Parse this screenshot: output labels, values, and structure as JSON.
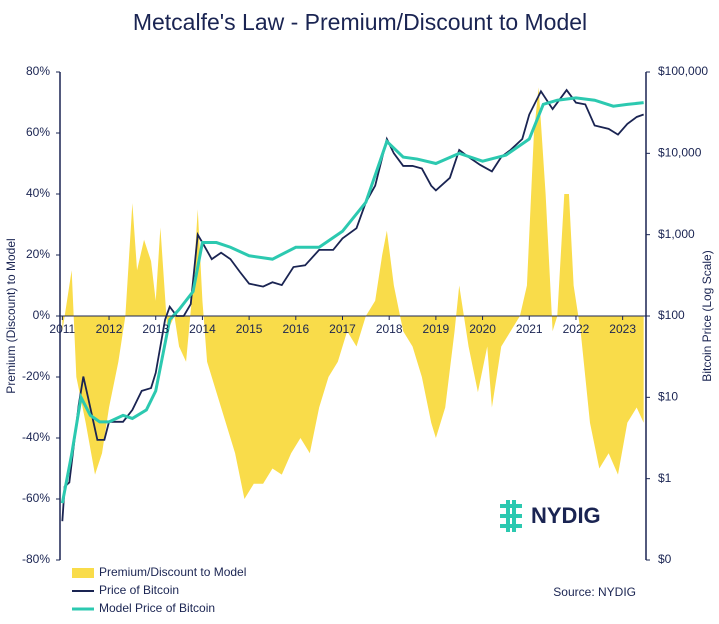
{
  "chart_data": {
    "type": "combo",
    "title": "Metcalfe's Law - Premium/Discount to Model",
    "y_label": "Premium (Discount) to Model",
    "y2_label": "Bitcoin Price (Log Scale)",
    "source": "Source: NYDIG",
    "logo": "NYDIG",
    "xlim": [
      2010.95,
      2023.5
    ],
    "xticks": [
      2011,
      2012,
      2013,
      2014,
      2015,
      2016,
      2017,
      2018,
      2019,
      2020,
      2021,
      2022,
      2023
    ],
    "ylim": [
      -80,
      80
    ],
    "yticks": [
      {
        "value": -80,
        "label": "-80%"
      },
      {
        "value": -60,
        "label": "-60%"
      },
      {
        "value": -40,
        "label": "-40%"
      },
      {
        "value": -20,
        "label": "-20%"
      },
      {
        "value": 0,
        "label": "0%"
      },
      {
        "value": 20,
        "label": "20%"
      },
      {
        "value": 40,
        "label": "40%"
      },
      {
        "value": 60,
        "label": "60%"
      },
      {
        "value": 80,
        "label": "80%"
      }
    ],
    "y2lim": [
      0.1,
      100000
    ],
    "y2log": true,
    "y2ticks": [
      {
        "value": 0.1,
        "label": "$0"
      },
      {
        "value": 1,
        "label": "$1"
      },
      {
        "value": 10,
        "label": "$10"
      },
      {
        "value": 100,
        "label": "$100"
      },
      {
        "value": 1000,
        "label": "$1,000"
      },
      {
        "value": 10000,
        "label": "$10,000"
      },
      {
        "value": 100000,
        "label": "$100,000"
      }
    ],
    "series": [
      {
        "name": "Premium/Discount to Model",
        "kind": "area",
        "color": "#f9dc4a",
        "x": [
          2011.0,
          2011.1,
          2011.2,
          2011.3,
          2011.5,
          2011.7,
          2011.85,
          2012.0,
          2012.2,
          2012.35,
          2012.5,
          2012.6,
          2012.75,
          2012.9,
          2013.0,
          2013.1,
          2013.25,
          2013.4,
          2013.5,
          2013.65,
          2013.8,
          2013.9,
          2014.0,
          2014.1,
          2014.3,
          2014.5,
          2014.7,
          2014.9,
          2015.1,
          2015.3,
          2015.5,
          2015.7,
          2015.9,
          2016.1,
          2016.3,
          2016.5,
          2016.7,
          2016.9,
          2017.1,
          2017.3,
          2017.5,
          2017.7,
          2017.85,
          2017.95,
          2018.1,
          2018.3,
          2018.5,
          2018.7,
          2018.9,
          2019.0,
          2019.2,
          2019.4,
          2019.5,
          2019.7,
          2019.9,
          2020.1,
          2020.2,
          2020.4,
          2020.6,
          2020.8,
          2020.95,
          2021.1,
          2021.2,
          2021.35,
          2021.5,
          2021.6,
          2021.75,
          2021.85,
          2021.95,
          2022.1,
          2022.3,
          2022.5,
          2022.7,
          2022.9,
          2023.1,
          2023.3,
          2023.45
        ],
        "values": [
          -5,
          5,
          15,
          -20,
          -35,
          -52,
          -45,
          -30,
          -15,
          0,
          37,
          15,
          25,
          18,
          5,
          29,
          -5,
          0,
          -10,
          -15,
          10,
          35,
          5,
          -15,
          -25,
          -35,
          -45,
          -60,
          -55,
          -55,
          -50,
          -52,
          -45,
          -40,
          -45,
          -30,
          -20,
          -15,
          -5,
          -10,
          0,
          5,
          20,
          28,
          10,
          -5,
          -10,
          -20,
          -35,
          -40,
          -30,
          -5,
          10,
          -10,
          -25,
          -10,
          -30,
          -10,
          -5,
          0,
          10,
          60,
          75,
          40,
          -5,
          0,
          40,
          40,
          10,
          -5,
          -35,
          -50,
          -45,
          -52,
          -35,
          -30,
          -35
        ]
      },
      {
        "name": "Price of Bitcoin",
        "kind": "line",
        "axis": "y2",
        "color": "#1a2452",
        "x": [
          2011.0,
          2011.05,
          2011.15,
          2011.35,
          2011.45,
          2011.55,
          2011.75,
          2011.9,
          2012.0,
          2012.3,
          2012.5,
          2012.7,
          2012.9,
          2013.0,
          2013.2,
          2013.3,
          2013.45,
          2013.6,
          2013.75,
          2013.9,
          2014.0,
          2014.2,
          2014.4,
          2014.6,
          2014.8,
          2015.0,
          2015.3,
          2015.5,
          2015.7,
          2015.95,
          2016.2,
          2016.5,
          2016.8,
          2017.0,
          2017.3,
          2017.5,
          2017.7,
          2017.95,
          2018.1,
          2018.3,
          2018.5,
          2018.7,
          2018.9,
          2019.0,
          2019.3,
          2019.5,
          2019.7,
          2019.95,
          2020.2,
          2020.4,
          2020.6,
          2020.85,
          2021.0,
          2021.25,
          2021.5,
          2021.8,
          2022.0,
          2022.2,
          2022.4,
          2022.7,
          2022.9,
          2023.1,
          2023.3,
          2023.45
        ],
        "values": [
          0.3,
          0.8,
          0.9,
          8,
          18,
          10,
          3,
          3,
          5,
          5,
          7,
          12,
          13,
          20,
          90,
          130,
          100,
          100,
          140,
          1000,
          800,
          500,
          600,
          500,
          350,
          250,
          230,
          260,
          240,
          400,
          420,
          650,
          650,
          900,
          1200,
          2500,
          4000,
          15000,
          10000,
          7000,
          7000,
          6500,
          4000,
          3500,
          5000,
          11000,
          9000,
          7200,
          6000,
          9000,
          11000,
          15000,
          30000,
          58000,
          35000,
          60000,
          42000,
          40000,
          22000,
          20000,
          17000,
          23000,
          28000,
          30000
        ]
      },
      {
        "name": "Model Price of Bitcoin",
        "kind": "line",
        "axis": "y2",
        "color": "#2cc9b0",
        "x": [
          2011.0,
          2011.2,
          2011.4,
          2011.6,
          2011.8,
          2012.0,
          2012.3,
          2012.5,
          2012.8,
          2013.0,
          2013.3,
          2013.5,
          2013.8,
          2014.0,
          2014.3,
          2014.6,
          2015.0,
          2015.5,
          2016.0,
          2016.5,
          2017.0,
          2017.5,
          2017.95,
          2018.3,
          2018.6,
          2019.0,
          2019.5,
          2020.0,
          2020.5,
          2021.0,
          2021.3,
          2021.6,
          2022.0,
          2022.4,
          2022.8,
          2023.1,
          2023.45
        ],
        "values": [
          0.5,
          2,
          10,
          6,
          5,
          5,
          6,
          5.5,
          7,
          12,
          90,
          120,
          200,
          800,
          800,
          700,
          550,
          500,
          700,
          700,
          1100,
          2500,
          14000,
          9000,
          8500,
          7500,
          10000,
          8000,
          9500,
          15000,
          40000,
          45000,
          48000,
          45000,
          38000,
          40000,
          42000
        ]
      }
    ]
  }
}
